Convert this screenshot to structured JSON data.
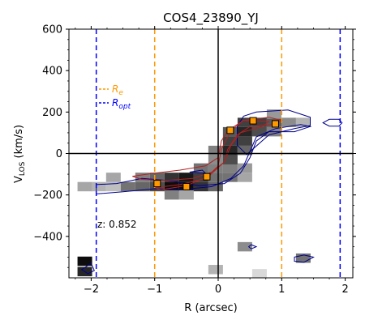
{
  "chart_data": {
    "type": "heatmap",
    "title": "COS4_23890_YJ",
    "xlabel": "R (arcsec)",
    "ylabel_main": "V",
    "ylabel_sub": "LOS",
    "ylabel_unit": " (km/s)",
    "xlim": [
      -2.35,
      2.12
    ],
    "ylim": [
      -600,
      600
    ],
    "xticks": [
      -2,
      -1,
      0,
      1,
      2
    ],
    "yticks": [
      -400,
      -200,
      0,
      200,
      400,
      600
    ],
    "annotation": "z: 0.852",
    "legend": [
      {
        "main": "R",
        "sub": "e",
        "color": "#ff9900"
      },
      {
        "main": "R",
        "sub": "opt",
        "color": "#0000ff"
      }
    ],
    "colors": {
      "re_line": "#ff9900",
      "ropt_line": "#0000ff",
      "model_contour": "#b22222",
      "data_contour": "#00008b",
      "marker": "#ff9900"
    },
    "re_lines_x": [
      -1.0,
      1.0
    ],
    "ropt_lines_x": [
      -1.92,
      1.92
    ],
    "pixels": [
      {
        "x": -2.1,
        "y": -520,
        "v": 0.95
      },
      {
        "x": -2.1,
        "y": -570,
        "v": 0.85
      },
      {
        "x": -2.1,
        "y": -160,
        "v": 0.35
      },
      {
        "x": -1.88,
        "y": -160,
        "v": 0.3
      },
      {
        "x": -1.65,
        "y": -160,
        "v": 0.25
      },
      {
        "x": -1.65,
        "y": -115,
        "v": 0.35
      },
      {
        "x": -1.42,
        "y": -160,
        "v": 0.55
      },
      {
        "x": -1.19,
        "y": -160,
        "v": 0.6
      },
      {
        "x": -1.19,
        "y": -115,
        "v": 0.5
      },
      {
        "x": -0.96,
        "y": -160,
        "v": 0.7
      },
      {
        "x": -0.96,
        "y": -115,
        "v": 0.6
      },
      {
        "x": -0.73,
        "y": -160,
        "v": 0.95
      },
      {
        "x": -0.73,
        "y": -115,
        "v": 0.8
      },
      {
        "x": -0.73,
        "y": -200,
        "v": 0.5
      },
      {
        "x": -0.5,
        "y": -160,
        "v": 0.95
      },
      {
        "x": -0.5,
        "y": -115,
        "v": 0.9
      },
      {
        "x": -0.5,
        "y": -200,
        "v": 0.35
      },
      {
        "x": -0.27,
        "y": -160,
        "v": 0.8
      },
      {
        "x": -0.27,
        "y": -115,
        "v": 0.75
      },
      {
        "x": -0.27,
        "y": -70,
        "v": 0.55
      },
      {
        "x": -0.04,
        "y": -160,
        "v": 0.6
      },
      {
        "x": -0.04,
        "y": -115,
        "v": 0.55
      },
      {
        "x": -0.04,
        "y": -70,
        "v": 0.5
      },
      {
        "x": -0.04,
        "y": -30,
        "v": 0.45
      },
      {
        "x": -0.04,
        "y": 15,
        "v": 0.5
      },
      {
        "x": -0.04,
        "y": -560,
        "v": 0.3
      },
      {
        "x": 0.19,
        "y": -115,
        "v": 0.55
      },
      {
        "x": 0.19,
        "y": -70,
        "v": 0.5
      },
      {
        "x": 0.19,
        "y": -30,
        "v": 0.7
      },
      {
        "x": 0.19,
        "y": 15,
        "v": 0.85
      },
      {
        "x": 0.19,
        "y": 60,
        "v": 0.75
      },
      {
        "x": 0.19,
        "y": 105,
        "v": 0.65
      },
      {
        "x": 0.42,
        "y": -115,
        "v": 0.35
      },
      {
        "x": 0.42,
        "y": -70,
        "v": 0.4
      },
      {
        "x": 0.42,
        "y": 15,
        "v": 0.6
      },
      {
        "x": 0.42,
        "y": 60,
        "v": 0.75
      },
      {
        "x": 0.42,
        "y": 105,
        "v": 0.85
      },
      {
        "x": 0.42,
        "y": 150,
        "v": 0.75
      },
      {
        "x": 0.65,
        "y": 105,
        "v": 0.7
      },
      {
        "x": 0.65,
        "y": 150,
        "v": 0.75
      },
      {
        "x": 0.88,
        "y": 105,
        "v": 0.5
      },
      {
        "x": 0.88,
        "y": 150,
        "v": 0.65
      },
      {
        "x": 0.88,
        "y": 190,
        "v": 0.4
      },
      {
        "x": 1.11,
        "y": 150,
        "v": 0.45
      },
      {
        "x": 1.34,
        "y": 150,
        "v": 0.3
      },
      {
        "x": 1.34,
        "y": -505,
        "v": 0.55
      },
      {
        "x": 0.42,
        "y": -450,
        "v": 0.45
      },
      {
        "x": 0.65,
        "y": -580,
        "v": 0.15
      }
    ],
    "markers": [
      {
        "x": -0.96,
        "y": -145
      },
      {
        "x": -0.5,
        "y": -160
      },
      {
        "x": -0.18,
        "y": -112
      },
      {
        "x": 0.19,
        "y": 112
      },
      {
        "x": 0.55,
        "y": 158
      },
      {
        "x": 0.9,
        "y": 143
      }
    ],
    "model_contours": [
      [
        [
          -1.35,
          -110
        ],
        [
          -1.0,
          -95
        ],
        [
          -0.6,
          -80
        ],
        [
          -0.2,
          -60
        ],
        [
          0.0,
          -20
        ],
        [
          0.05,
          60
        ],
        [
          0.15,
          110
        ],
        [
          0.4,
          160
        ],
        [
          0.8,
          175
        ],
        [
          1.0,
          160
        ],
        [
          0.85,
          140
        ],
        [
          0.5,
          130
        ],
        [
          0.3,
          90
        ],
        [
          0.15,
          20
        ],
        [
          0.1,
          -40
        ],
        [
          -0.1,
          -90
        ],
        [
          -0.4,
          -120
        ],
        [
          -0.8,
          -130
        ],
        [
          -1.2,
          -125
        ],
        [
          -1.35,
          -110
        ]
      ],
      [
        [
          -1.0,
          -165
        ],
        [
          -0.6,
          -150
        ],
        [
          -0.2,
          -120
        ],
        [
          0.0,
          -60
        ],
        [
          0.05,
          20
        ],
        [
          0.2,
          110
        ],
        [
          0.4,
          160
        ],
        [
          0.8,
          155
        ],
        [
          0.7,
          130
        ],
        [
          0.35,
          100
        ],
        [
          0.2,
          40
        ],
        [
          0.1,
          -40
        ],
        [
          -0.15,
          -110
        ],
        [
          -0.5,
          -155
        ],
        [
          -0.9,
          -175
        ],
        [
          -1.0,
          -165
        ]
      ]
    ],
    "data_contours": [
      [
        [
          -1.92,
          -195
        ],
        [
          -1.5,
          -185
        ],
        [
          -1.0,
          -170
        ],
        [
          -0.6,
          -175
        ],
        [
          -0.1,
          -160
        ],
        [
          0.2,
          -120
        ],
        [
          0.4,
          -60
        ],
        [
          0.5,
          10
        ],
        [
          0.6,
          80
        ],
        [
          0.9,
          120
        ],
        [
          1.3,
          140
        ],
        [
          1.45,
          130
        ],
        [
          1.2,
          105
        ],
        [
          0.8,
          105
        ],
        [
          0.6,
          60
        ],
        [
          0.5,
          -20
        ],
        [
          0.35,
          -95
        ],
        [
          0.1,
          -145
        ],
        [
          -0.3,
          -155
        ],
        [
          -0.8,
          -130
        ],
        [
          -1.2,
          -120
        ],
        [
          -1.6,
          -145
        ],
        [
          -1.92,
          -150
        ],
        [
          -1.92,
          -195
        ]
      ],
      [
        [
          0.45,
          -5
        ],
        [
          0.8,
          90
        ],
        [
          1.2,
          120
        ],
        [
          1.45,
          135
        ],
        [
          1.45,
          175
        ],
        [
          1.1,
          210
        ],
        [
          0.6,
          200
        ],
        [
          0.4,
          180
        ],
        [
          0.3,
          130
        ],
        [
          0.3,
          40
        ],
        [
          0.45,
          -5
        ]
      ],
      [
        [
          1.65,
          148
        ],
        [
          1.75,
          165
        ],
        [
          1.9,
          165
        ],
        [
          1.95,
          148
        ],
        [
          1.9,
          132
        ],
        [
          1.75,
          132
        ],
        [
          1.65,
          148
        ]
      ],
      [
        [
          1.2,
          -500
        ],
        [
          1.35,
          -490
        ],
        [
          1.5,
          -500
        ],
        [
          1.35,
          -525
        ],
        [
          1.2,
          -520
        ],
        [
          1.2,
          -500
        ]
      ],
      [
        [
          -2.15,
          -560
        ],
        [
          -2.0,
          -530
        ],
        [
          -1.95,
          -565
        ],
        [
          -2.05,
          -580
        ],
        [
          -2.15,
          -560
        ]
      ],
      [
        [
          0.48,
          -450
        ],
        [
          0.52,
          -440
        ],
        [
          0.6,
          -450
        ],
        [
          0.52,
          -460
        ],
        [
          0.48,
          -450
        ]
      ],
      [
        [
          -0.45,
          -90
        ],
        [
          -0.25,
          -80
        ],
        [
          -0.2,
          -95
        ],
        [
          -0.45,
          -90
        ]
      ]
    ]
  }
}
